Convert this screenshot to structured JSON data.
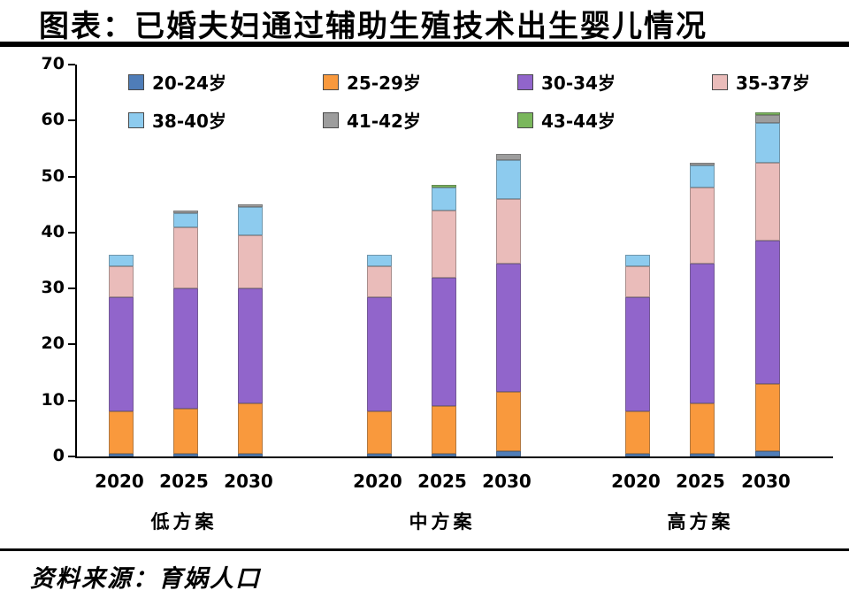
{
  "chart_data": {
    "type": "bar",
    "stacked": true,
    "title": "图表：已婚夫妇通过辅助生殖技术出生婴儿情况",
    "source": "资料来源：育娲人口",
    "ylim": [
      0,
      70
    ],
    "yticks": [
      0,
      10,
      20,
      30,
      40,
      50,
      60,
      70
    ],
    "grid": false,
    "legend_position": "top",
    "groups": [
      "低方案",
      "中方案",
      "高方案"
    ],
    "categories": [
      "2020",
      "2025",
      "2030"
    ],
    "columns": [
      "低方案-2020",
      "低方案-2025",
      "低方案-2030",
      "中方案-2020",
      "中方案-2025",
      "中方案-2030",
      "高方案-2020",
      "高方案-2025",
      "高方案-2030"
    ],
    "series": [
      {
        "name": "20-24岁",
        "color": "#4f7db8",
        "values": [
          0.5,
          0.5,
          0.5,
          0.5,
          0.5,
          1.0,
          0.5,
          0.5,
          1.0
        ]
      },
      {
        "name": "25-29岁",
        "color": "#f9993d",
        "values": [
          7.5,
          8.0,
          9.0,
          7.5,
          8.5,
          10.5,
          7.5,
          9.0,
          12.0
        ]
      },
      {
        "name": "30-34岁",
        "color": "#9165cb",
        "values": [
          20.5,
          21.5,
          20.5,
          20.5,
          23.0,
          23.0,
          20.5,
          25.0,
          25.5
        ]
      },
      {
        "name": "35-37岁",
        "color": "#eabcba",
        "values": [
          5.5,
          11.0,
          9.5,
          5.5,
          12.0,
          11.5,
          5.5,
          13.5,
          14.0
        ]
      },
      {
        "name": "38-40岁",
        "color": "#8dcbee",
        "values": [
          2.0,
          2.5,
          5.0,
          2.0,
          4.0,
          7.0,
          2.0,
          4.0,
          7.0
        ]
      },
      {
        "name": "41-42岁",
        "color": "#9d9d9d",
        "values": [
          0,
          0.5,
          0.5,
          0,
          0,
          1.0,
          0,
          0.5,
          1.5
        ]
      },
      {
        "name": "43-44岁",
        "color": "#7ab75c",
        "values": [
          0,
          0,
          0,
          0,
          0.5,
          0,
          0,
          0,
          0.5
        ]
      }
    ]
  }
}
